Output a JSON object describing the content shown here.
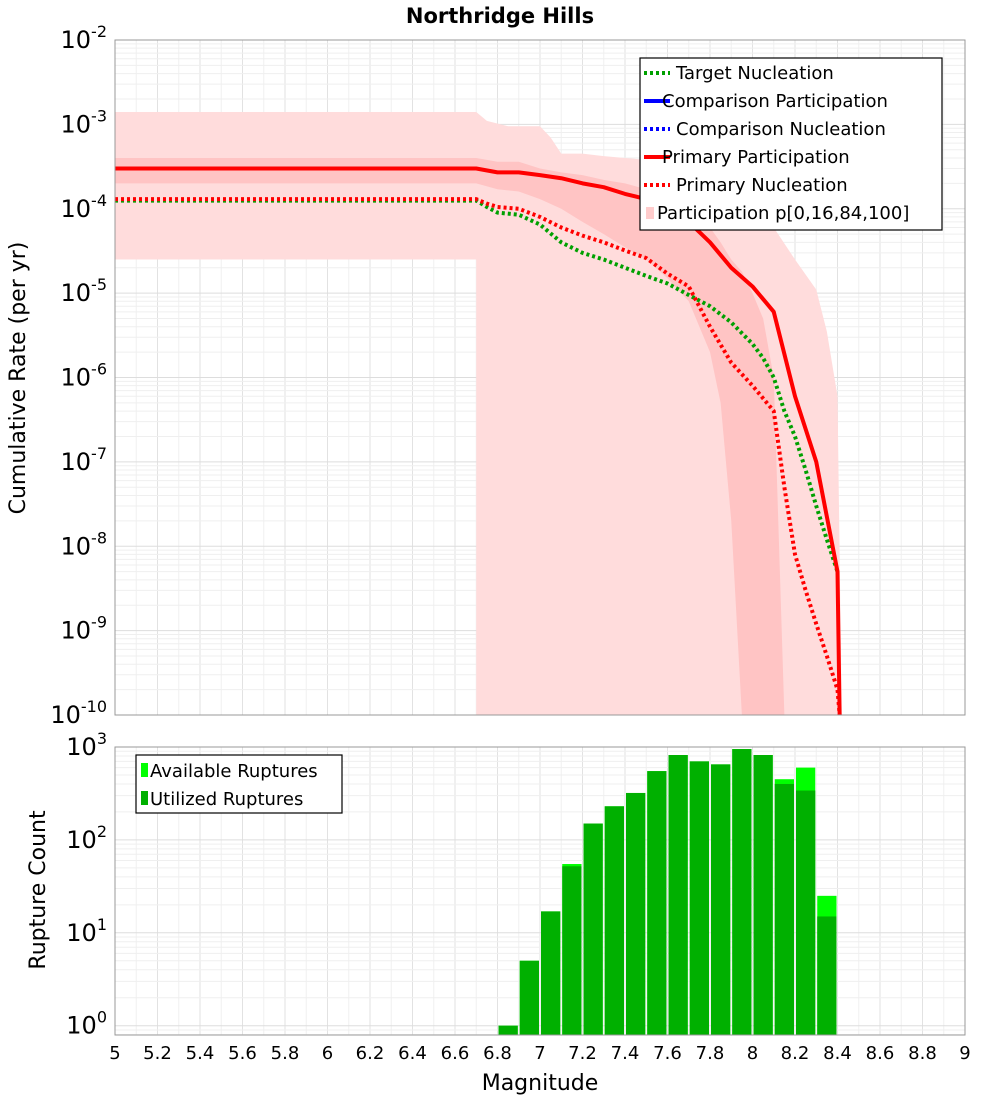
{
  "chart_data": [
    {
      "type": "line",
      "title": "Northridge Hills",
      "xlabel": "",
      "ylabel": "Cumulative Rate (per yr)",
      "xlim": [
        5,
        9
      ],
      "ylim_log10": [
        -10,
        -2
      ],
      "y_scale": "log",
      "grid": true,
      "legend_position": "top-right",
      "y_tick_exponents": [
        "-2",
        "-3",
        "-4",
        "-5",
        "-6",
        "-7",
        "-8",
        "-9",
        "-10"
      ],
      "y_tick_base": "10",
      "band_outer": {
        "name": "Participation p[0,16,84,100] (0-100)",
        "x": [
          5.0,
          6.7,
          6.7,
          6.75,
          6.85,
          7.0,
          7.05,
          7.1,
          7.15,
          7.2,
          7.3,
          7.4,
          7.5,
          7.6,
          7.7,
          7.8,
          7.9,
          8.0,
          8.1,
          8.2,
          8.3,
          8.35,
          8.4,
          8.42
        ],
        "upper": [
          0.0014,
          0.0014,
          0.0014,
          0.0011,
          0.00095,
          0.00095,
          0.0007,
          0.00045,
          0.00045,
          0.00045,
          0.00042,
          0.0004,
          0.00038,
          0.00033,
          0.00028,
          0.00022,
          0.00015,
          0.0001,
          6e-05,
          2.5e-05,
          1.1e-05,
          3.5e-06,
          6e-07,
          1e-10
        ],
        "lower": [
          2.5e-05,
          2.5e-05,
          1e-10,
          1e-10,
          1e-10,
          1e-10,
          1e-10,
          1e-10,
          1e-10,
          1e-10,
          1e-10,
          1e-10,
          1e-10,
          1e-10,
          1e-10,
          1e-10,
          1e-10,
          1e-10,
          1e-10,
          1e-10,
          1e-10,
          1e-10,
          1e-10,
          1e-10
        ]
      },
      "band_inner": {
        "name": "Participation p[0,16,84,100] (16-84)",
        "x": [
          5.0,
          6.7,
          6.8,
          6.9,
          7.0,
          7.1,
          7.2,
          7.3,
          7.4,
          7.5,
          7.6,
          7.7,
          7.8,
          7.85,
          7.9,
          7.95,
          8.0,
          8.05,
          8.1,
          8.15
        ],
        "upper": [
          0.0004,
          0.0004,
          0.00036,
          0.00036,
          0.0003,
          0.00027,
          0.00025,
          0.00022,
          0.0002,
          0.00017,
          0.00014,
          0.0001,
          6e-05,
          4e-05,
          2.5e-05,
          1.8e-05,
          1e-05,
          5e-06,
          1e-06,
          1e-10
        ],
        "lower": [
          0.0002,
          0.0002,
          0.00017,
          0.00016,
          0.00013,
          0.0001,
          7e-05,
          5e-05,
          3.5e-05,
          2.5e-05,
          1.5e-05,
          8e-06,
          2e-06,
          5e-07,
          2e-08,
          1e-10,
          1e-10,
          1e-10,
          1e-10,
          1e-10
        ]
      },
      "series": [
        {
          "name": "Target Nucleation",
          "color": "#00a000",
          "style": "dotted",
          "x": [
            5.0,
            6.7,
            6.75,
            6.8,
            6.9,
            7.0,
            7.1,
            7.2,
            7.3,
            7.4,
            7.5,
            7.6,
            7.7,
            7.8,
            7.9,
            8.0,
            8.05,
            8.1,
            8.15,
            8.2,
            8.25,
            8.3,
            8.35,
            8.4
          ],
          "y": [
            0.000125,
            0.000125,
            0.000105,
            9e-05,
            8.5e-05,
            6.5e-05,
            4e-05,
            3e-05,
            2.5e-05,
            2e-05,
            1.6e-05,
            1.3e-05,
            9.5e-06,
            7e-06,
            4.5e-06,
            2.5e-06,
            1.7e-06,
            1e-06,
            4e-07,
            2e-07,
            8e-08,
            3e-08,
            1.2e-08,
            5e-09
          ]
        },
        {
          "name": "Comparison Participation",
          "color": "#0000ff",
          "style": "solid",
          "x": [],
          "y": []
        },
        {
          "name": "Comparison Nucleation",
          "color": "#0000ff",
          "style": "dotted",
          "x": [],
          "y": []
        },
        {
          "name": "Primary Participation",
          "color": "#ff0000",
          "style": "solid",
          "x": [
            5.0,
            6.7,
            6.8,
            6.9,
            7.0,
            7.1,
            7.2,
            7.3,
            7.4,
            7.5,
            7.6,
            7.7,
            7.8,
            7.9,
            8.0,
            8.1,
            8.2,
            8.3,
            8.4,
            8.41
          ],
          "y": [
            0.0003,
            0.0003,
            0.00027,
            0.00027,
            0.00025,
            0.00023,
            0.0002,
            0.00018,
            0.00015,
            0.00013,
            0.0001,
            7e-05,
            4e-05,
            2e-05,
            1.2e-05,
            6e-06,
            6e-07,
            1e-07,
            5e-09,
            1e-10
          ]
        },
        {
          "name": "Primary Nucleation",
          "color": "#ff0000",
          "style": "dotted",
          "x": [
            5.0,
            6.7,
            6.75,
            6.8,
            6.9,
            7.0,
            7.1,
            7.2,
            7.3,
            7.4,
            7.5,
            7.6,
            7.7,
            7.8,
            7.9,
            8.0,
            8.1,
            8.15,
            8.2,
            8.25,
            8.3,
            8.35,
            8.4,
            8.41
          ],
          "y": [
            0.00013,
            0.00013,
            0.000115,
            0.000105,
            0.0001,
            8e-05,
            6e-05,
            4.8e-05,
            4e-05,
            3.2e-05,
            2.6e-05,
            1.7e-05,
            1.2e-05,
            4e-06,
            1.5e-06,
            8e-07,
            4e-07,
            5e-08,
            8e-09,
            3e-09,
            1.2e-09,
            5e-10,
            2e-10,
            1e-10
          ]
        }
      ],
      "legend": [
        {
          "label": "Target Nucleation",
          "color": "#00a000",
          "style": "dotted"
        },
        {
          "label": "Comparison Participation",
          "color": "#0000ff",
          "style": "solid"
        },
        {
          "label": "Comparison Nucleation",
          "color": "#0000ff",
          "style": "dotted"
        },
        {
          "label": "Primary Participation",
          "color": "#ff0000",
          "style": "solid"
        },
        {
          "label": "Primary Nucleation",
          "color": "#ff0000",
          "style": "dotted"
        },
        {
          "label": "Participation p[0,16,84,100]",
          "color": "#ffcccc",
          "style": "patch"
        }
      ]
    },
    {
      "type": "bar",
      "title": "",
      "xlabel": "Magnitude",
      "ylabel": "Rupture Count",
      "xlim": [
        5,
        9
      ],
      "ylim_log10": [
        -0.1,
        3
      ],
      "y_scale": "log",
      "grid": true,
      "legend_position": "top-left",
      "y_tick_exponents": [
        "0",
        "1",
        "2",
        "3"
      ],
      "y_tick_base": "10",
      "x_ticks": [
        "5",
        "5.2",
        "5.4",
        "5.6",
        "5.8",
        "6",
        "6.2",
        "6.4",
        "6.6",
        "6.8",
        "7",
        "7.2",
        "7.4",
        "7.6",
        "7.8",
        "8",
        "8.2",
        "8.4",
        "8.6",
        "8.8",
        "9"
      ],
      "bin_width": 0.1,
      "bin_centers": [
        6.85,
        6.95,
        7.05,
        7.15,
        7.25,
        7.35,
        7.45,
        7.55,
        7.65,
        7.75,
        7.85,
        7.95,
        8.05,
        8.15,
        8.25,
        8.35
      ],
      "series": [
        {
          "name": "Available Ruptures",
          "color": "#00ff00",
          "values": [
            1,
            5,
            17,
            55,
            150,
            230,
            320,
            550,
            820,
            700,
            650,
            950,
            820,
            450,
            600,
            25
          ]
        },
        {
          "name": "Utilized Ruptures",
          "color": "#00b000",
          "values": [
            1,
            5,
            17,
            52,
            150,
            230,
            320,
            550,
            820,
            700,
            650,
            950,
            820,
            400,
            340,
            15
          ]
        }
      ],
      "legend": [
        {
          "label": "Available Ruptures",
          "color": "#00ff00"
        },
        {
          "label": "Utilized Ruptures",
          "color": "#00b000"
        }
      ]
    }
  ]
}
